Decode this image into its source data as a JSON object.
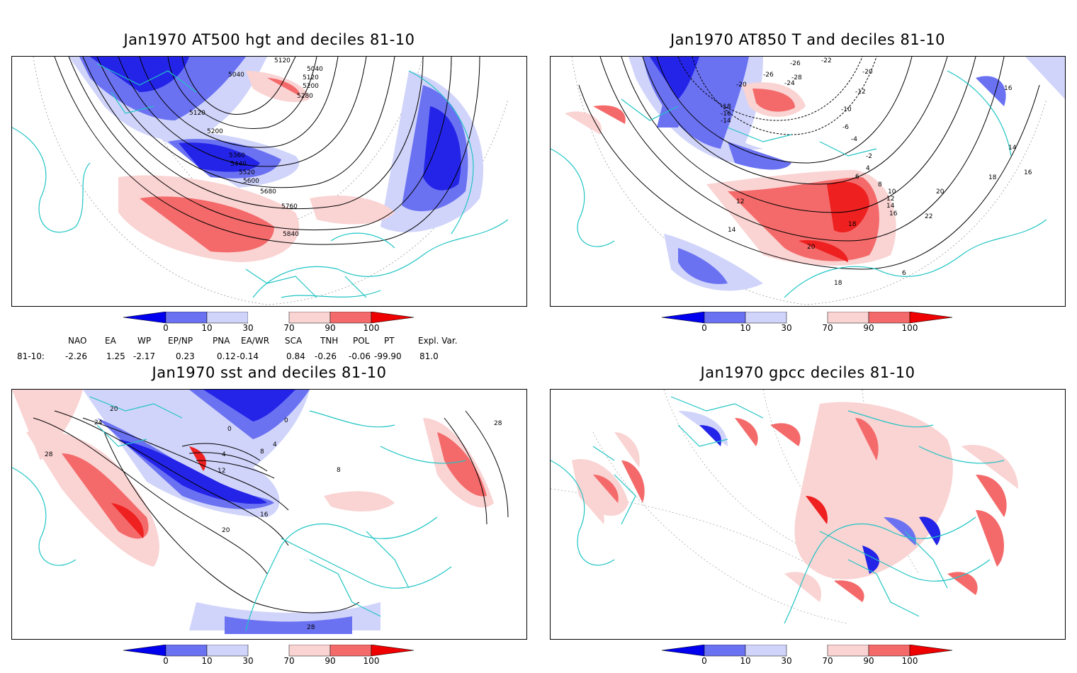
{
  "panels": [
    {
      "title": "Jan1970 AT500 hgt and deciles 81-10",
      "contour_labels": [
        "5040",
        "5120",
        "5040",
        "5120",
        "5200",
        "5280",
        "5120",
        "5200",
        "5360",
        "5440",
        "5520",
        "5600",
        "5680",
        "5760",
        "5840"
      ]
    },
    {
      "title": "Jan1970 AT850 T and deciles 81-10",
      "contour_labels": [
        "-26",
        "-22",
        "-26",
        "-20",
        "-18",
        "-16",
        "-14",
        "-12",
        "-20",
        "-24",
        "-28",
        "-10",
        "-6",
        "-4",
        "-2",
        "4",
        "6",
        "8",
        "10",
        "12",
        "14",
        "16",
        "18",
        "20",
        "22",
        "14",
        "16",
        "18",
        "20",
        "12",
        "14",
        "16",
        "18",
        "6"
      ]
    },
    {
      "title": "Jan1970 sst and deciles 81-10",
      "contour_labels": [
        "20",
        "24",
        "28",
        "0",
        "4",
        "8",
        "12",
        "16",
        "20",
        "28",
        "4",
        "0",
        "8",
        "28"
      ]
    },
    {
      "title": "Jan1970 gpcc deciles 81-10",
      "contour_labels": []
    }
  ],
  "colorbar": {
    "ticks": [
      "0",
      "10",
      "30",
      "70",
      "90",
      "100"
    ],
    "colors": [
      "#0000ee",
      "#6b72f2",
      "#d0d4fa",
      "#ffffff",
      "#fad3d3",
      "#f46a6a",
      "#ee0000"
    ]
  },
  "indices": {
    "headers": [
      "NAO",
      "EA",
      "WP",
      "EP/NP",
      "PNA",
      "EA/WR",
      "SCA",
      "TNH",
      "POL",
      "PT",
      "Expl. Var."
    ],
    "row_label": "81-10:",
    "values": [
      "-2.26",
      "1.25",
      "-2.17",
      "0.23",
      "0.12",
      "-0.14",
      "0.84",
      "-0.26",
      "-0.06",
      "-99.90",
      "81.0"
    ]
  },
  "map_style": {
    "coast_color": "#20c4c4",
    "dark_blue": "#2424e8",
    "mid_blue": "#6b72f2",
    "light_blue": "#d0d4fa",
    "light_red": "#fad3d3",
    "mid_red": "#f46a6a",
    "dark_red": "#ee2020"
  }
}
